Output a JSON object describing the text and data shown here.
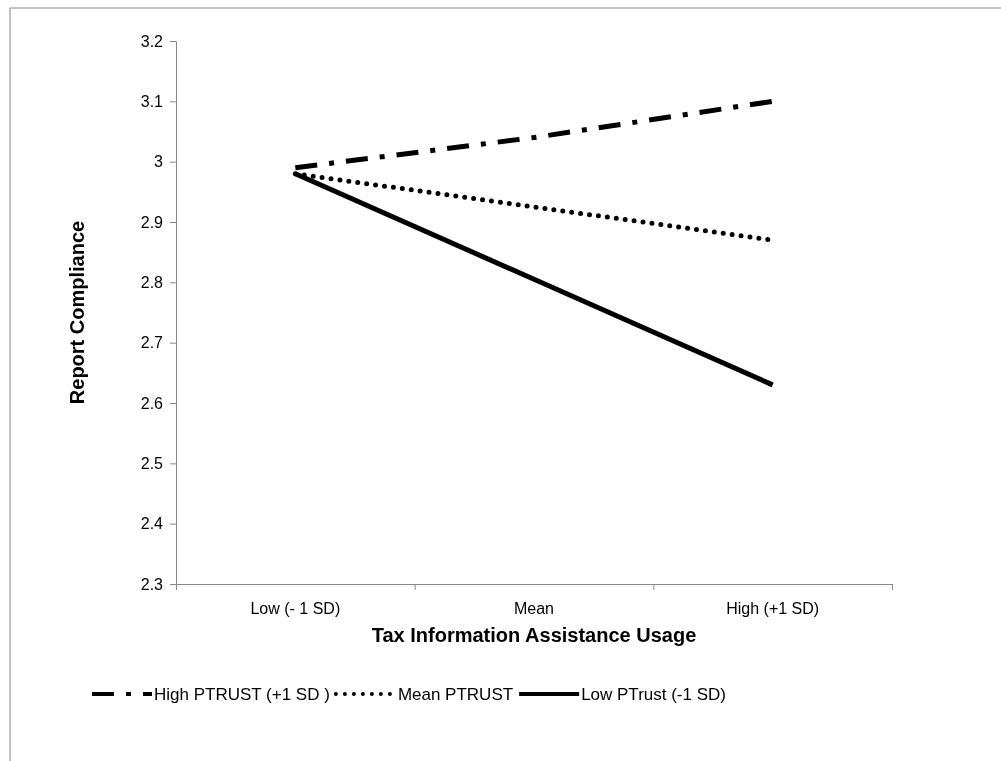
{
  "chart_data": {
    "type": "line",
    "xlabel": "Tax Information Assistance Usage",
    "ylabel": "Report Compliance",
    "categories": [
      "Low (- 1 SD)",
      "Mean",
      "High (+1 SD)"
    ],
    "series": [
      {
        "name": "High PTRUST (+1 SD )",
        "color": "#000000",
        "line_style": "dashed",
        "values": [
          2.99,
          3.04,
          3.1
        ]
      },
      {
        "name": "Mean PTRUST",
        "color": "#000000",
        "line_style": "dotted",
        "values": [
          2.98,
          2.925,
          2.87
        ]
      },
      {
        "name": "Low PTrust (-1 SD)",
        "color": "#000000",
        "line_style": "solid",
        "values": [
          2.98,
          2.805,
          2.63
        ]
      }
    ],
    "ylim": [
      2.3,
      3.2
    ],
    "yticks": [
      2.3,
      2.4,
      2.5,
      2.6,
      2.7,
      2.8,
      2.9,
      3,
      3.1,
      3.2
    ],
    "grid": false,
    "legend": "bottom",
    "marker": "none"
  }
}
